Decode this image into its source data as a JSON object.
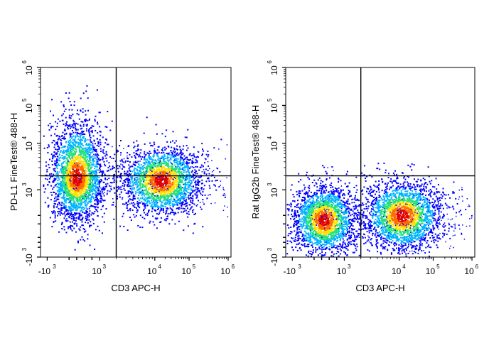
{
  "chart_data": [
    {
      "type": "density-scatter",
      "panel": "left",
      "xlabel": "CD3 APC-H",
      "ylabel": "PD-L1  FineTest® 488-H",
      "x_scale": "biexponential",
      "y_scale": "biexponential",
      "x_ticks": [
        {
          "base": "-10",
          "exp": "3",
          "value": -1000
        },
        {
          "base": "10",
          "exp": "3",
          "value": 1000
        },
        {
          "base": "10",
          "exp": "4",
          "value": 10000
        },
        {
          "base": "10",
          "exp": "5",
          "value": 100000
        },
        {
          "base": "10",
          "exp": "6",
          "value": 1000000
        }
      ],
      "y_ticks": [
        {
          "base": "-10",
          "exp": "3",
          "value": -1000
        },
        {
          "base": "10",
          "exp": "3",
          "value": 1000
        },
        {
          "base": "10",
          "exp": "4",
          "value": 10000
        },
        {
          "base": "10",
          "exp": "5",
          "value": 100000
        },
        {
          "base": "10",
          "exp": "6",
          "value": 1000000
        }
      ],
      "quadrant_gate": {
        "x": 2000,
        "y": 2000
      },
      "populations": [
        {
          "center_x": 400,
          "center_y": 1800,
          "density": "high"
        },
        {
          "center_x": 15000,
          "center_y": 1600,
          "density": "high"
        }
      ]
    },
    {
      "type": "density-scatter",
      "panel": "right",
      "xlabel": "CD3 APC-H",
      "ylabel": "Rat IgG2b FineTest® 488-H",
      "x_scale": "biexponential",
      "y_scale": "biexponential",
      "x_ticks": [
        {
          "base": "-10",
          "exp": "3",
          "value": -1000
        },
        {
          "base": "10",
          "exp": "3",
          "value": 1000
        },
        {
          "base": "10",
          "exp": "4",
          "value": 10000
        },
        {
          "base": "10",
          "exp": "5",
          "value": 100000
        },
        {
          "base": "10",
          "exp": "6",
          "value": 1000000
        }
      ],
      "y_ticks": [
        {
          "base": "-10",
          "exp": "3",
          "value": -1000
        },
        {
          "base": "10",
          "exp": "3",
          "value": 1000
        },
        {
          "base": "10",
          "exp": "4",
          "value": 10000
        },
        {
          "base": "10",
          "exp": "5",
          "value": 100000
        },
        {
          "base": "10",
          "exp": "6",
          "value": 1000000
        }
      ],
      "quadrant_gate": {
        "x": 2000,
        "y": 2000
      },
      "populations": [
        {
          "center_x": 450,
          "center_y": 300,
          "density": "high"
        },
        {
          "center_x": 12000,
          "center_y": 400,
          "density": "high"
        }
      ]
    }
  ],
  "colors": {
    "density_low": "#0000ff",
    "density_mid_low": "#00b4ff",
    "density_mid": "#22e07a",
    "density_mid_high": "#ffe000",
    "density_high": "#ff6a00",
    "density_peak": "#e00000",
    "axis": "#000000"
  }
}
